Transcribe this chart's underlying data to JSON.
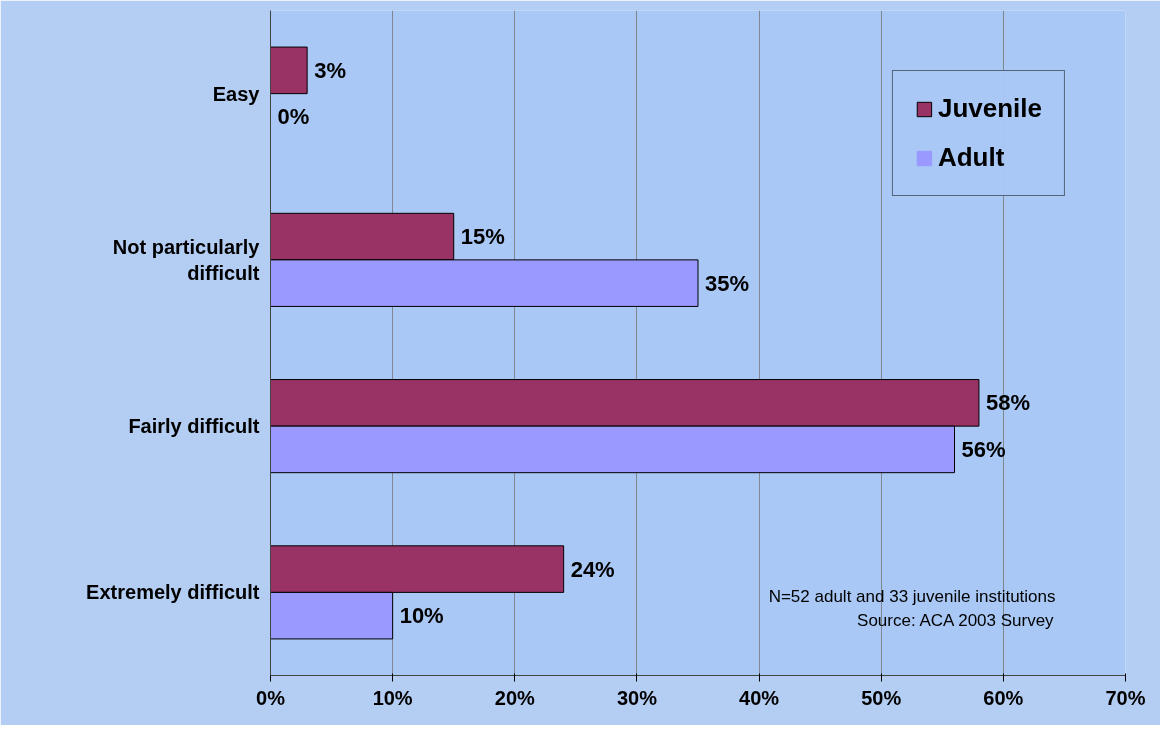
{
  "chart_data": {
    "type": "bar",
    "orientation": "horizontal",
    "categories": [
      "Easy",
      "Not particularly difficult",
      "Fairly difficult",
      "Extremely difficult"
    ],
    "series": [
      {
        "name": "Juvenile",
        "color": "#993366",
        "values": [
          3,
          15,
          58,
          24
        ],
        "value_labels": [
          "3%",
          "15%",
          "58%",
          "24%"
        ]
      },
      {
        "name": "Adult",
        "color": "#9999ff",
        "values": [
          0,
          35,
          56,
          10
        ],
        "value_labels": [
          "0%",
          "35%",
          "56%",
          "10%"
        ]
      }
    ],
    "xlim": [
      0,
      70
    ],
    "xticks": [
      {
        "value": 0,
        "label": "0%"
      },
      {
        "value": 10,
        "label": "10%"
      },
      {
        "value": 20,
        "label": "20%"
      },
      {
        "value": 30,
        "label": "30%"
      },
      {
        "value": 40,
        "label": "40%"
      },
      {
        "value": 50,
        "label": "50%"
      },
      {
        "value": 60,
        "label": "60%"
      },
      {
        "value": 70,
        "label": "70%"
      }
    ],
    "grid": "x",
    "legend": "top right",
    "annotations": [
      "N=52 adult and 33 juvenile institutions",
      "Source: ACA 2003 Survey"
    ]
  }
}
